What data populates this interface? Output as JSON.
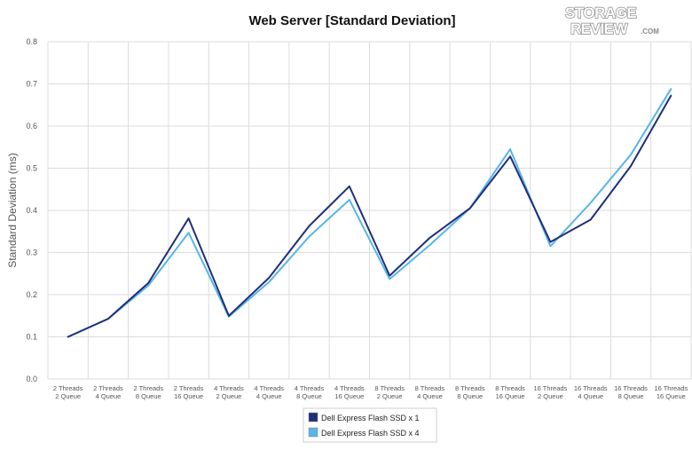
{
  "chart_data": {
    "type": "line",
    "title": "Web Server [Standard Deviation]",
    "xlabel": "",
    "ylabel": "Standard Deviation (ms)",
    "ylim": [
      0,
      0.8
    ],
    "yticks": [
      "0.0",
      "0.1",
      "0.2",
      "0.3",
      "0.4",
      "0.5",
      "0.6",
      "0.7",
      "0.8"
    ],
    "grid": true,
    "legend_position": "bottom-center",
    "categories": [
      [
        "2 Threads",
        "2 Queue"
      ],
      [
        "2 Threads",
        "4 Queue"
      ],
      [
        "2 Threads",
        "8 Queue"
      ],
      [
        "2 Threads",
        "16 Queue"
      ],
      [
        "4 Threads",
        "2 Queue"
      ],
      [
        "4 Threads",
        "4 Queue"
      ],
      [
        "4 Threads",
        "8 Queue"
      ],
      [
        "4 Threads",
        "16 Queue"
      ],
      [
        "8 Threads",
        "2 Queue"
      ],
      [
        "8 Threads",
        "4 Queue"
      ],
      [
        "8 Threads",
        "8 Queue"
      ],
      [
        "8 Threads",
        "16 Queue"
      ],
      [
        "16 Threads",
        "2 Queue"
      ],
      [
        "16 Threads",
        "4 Queue"
      ],
      [
        "16 Threads",
        "8 Queue"
      ],
      [
        "16 Threads",
        "16 Queue"
      ]
    ],
    "series": [
      {
        "name": "Dell Express Flash SSD x 1",
        "color": "#1f2f7a",
        "values": [
          0.1,
          0.143,
          0.228,
          0.381,
          0.15,
          0.24,
          0.363,
          0.457,
          0.245,
          0.335,
          0.405,
          0.528,
          0.325,
          0.378,
          0.505,
          0.672
        ]
      },
      {
        "name": "Dell Express Flash SSD x 4",
        "color": "#57b5e8",
        "values": [
          0.1,
          0.143,
          0.222,
          0.347,
          0.148,
          0.23,
          0.338,
          0.425,
          0.237,
          0.318,
          0.405,
          0.545,
          0.315,
          0.418,
          0.532,
          0.688
        ]
      }
    ]
  },
  "watermark": {
    "line1": "STORAGE",
    "line2": "REVIEW",
    "suffix": ".COM"
  }
}
